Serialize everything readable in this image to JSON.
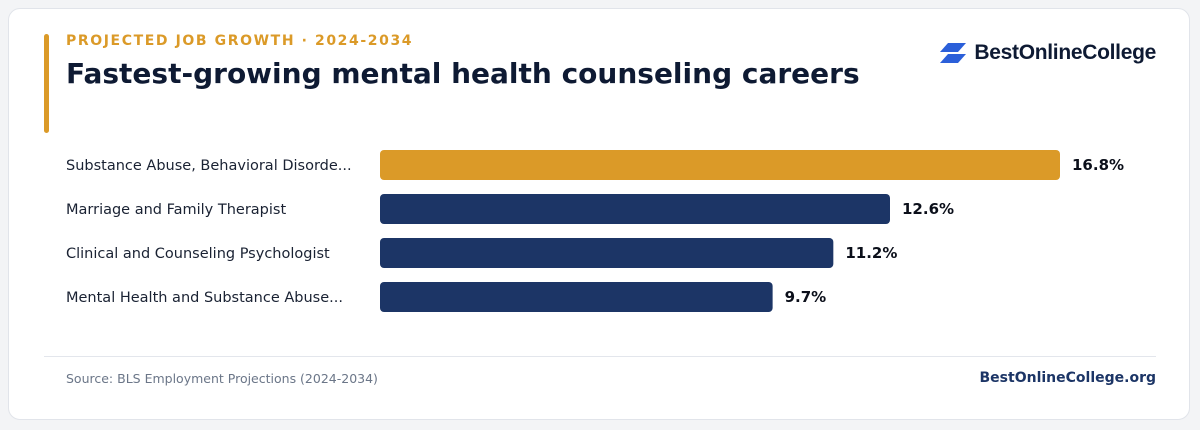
{
  "header": {
    "eyebrow": "PROJECTED JOB GROWTH · 2024-2034",
    "title": "Fastest-growing mental health counseling careers"
  },
  "brand": {
    "name": "BestOnlineCollege",
    "icon": "brand-chevron-logo-icon"
  },
  "colors": {
    "highlight": "#db9a28",
    "bar": "#1c3566",
    "title": "#0e1a33"
  },
  "chart_data": {
    "type": "bar",
    "orientation": "horizontal",
    "categories": [
      "Substance Abuse, Behavioral Disorde...",
      "Marriage and Family Therapist",
      "Clinical and Counseling Psychologist",
      "Mental Health and Substance Abuse..."
    ],
    "values": [
      16.8,
      12.6,
      11.2,
      9.7
    ],
    "value_labels": [
      "16.8%",
      "12.6%",
      "11.2%",
      "9.7%"
    ],
    "highlighted_index": 0,
    "grid": false,
    "legend": "none"
  },
  "footer": {
    "source": "Source: BLS Employment Projections (2024-2034)",
    "site": "BestOnlineCollege.org"
  }
}
